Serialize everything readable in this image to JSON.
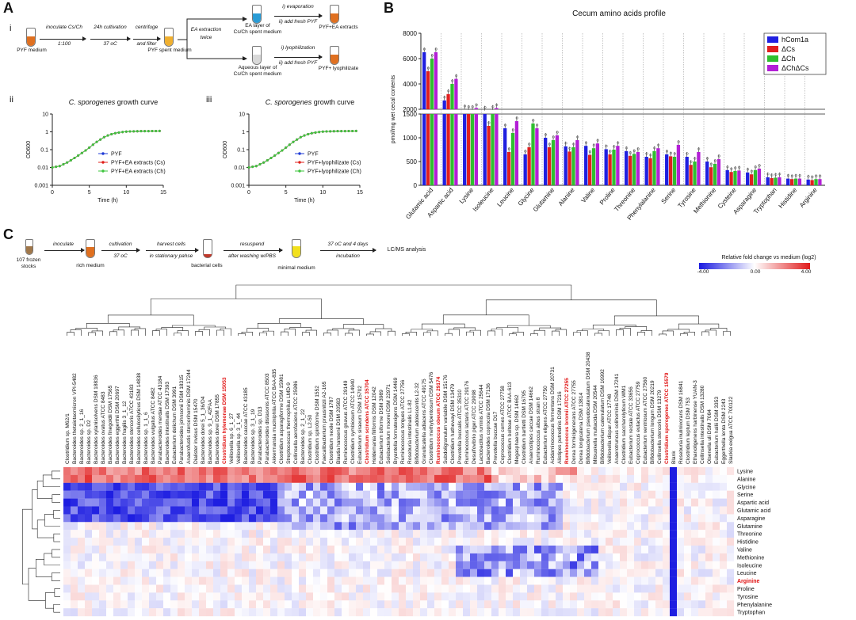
{
  "figure": {
    "panels": {
      "A": "A",
      "B": "B",
      "C": "C",
      "A_i": "i",
      "A_ii": "ii",
      "A_iii": "iii"
    },
    "flowA": {
      "start": "PYF medium",
      "step1_top": "inoculate Cs/Ch",
      "step1_bot": "1:100",
      "step2_top": "24h cultivation",
      "step2_bot": "37 oC",
      "step3_top": "centrifuge",
      "step3_bot": "and filter",
      "spent": "PYF spent medium",
      "step4_top": "EA extraction",
      "step4_bot": "twice",
      "ea_layer_1": "EA layer of",
      "ea_layer_2": "Cs/Ch spent medium",
      "aq_layer_1": "Aqueous layer of",
      "aq_layer_2": "Cs/Ch spent medium",
      "evap_1": "i) evaporation",
      "evap_2": "ii) add fresh PYF",
      "lyo_1": "i) lyophilization",
      "lyo_2": "ii) add fresh PYF",
      "out1": "PYF+EA extracts",
      "out2": "PYF+ lyophilizate"
    },
    "growth_ii": {
      "title_italic": "C. sporogenes",
      "title_rest": " growth curve",
      "ylabel": "OD600",
      "xlabel": "Time (h)",
      "yticks": [
        "10",
        "1",
        "0.1",
        "0.01",
        "0.001"
      ],
      "xticks": [
        "0",
        "5",
        "10",
        "15"
      ],
      "legend": [
        "PYF",
        "PYF+EA extracts (Cs)",
        "PYF+EA extracts (Ch)"
      ],
      "colors": [
        "#1f3bd6",
        "#e0201b",
        "#3ec43e"
      ]
    },
    "growth_iii": {
      "title_italic": "C. sporogenes",
      "title_rest": " growth curve",
      "ylabel": "OD600",
      "xlabel": "Time (h)",
      "yticks": [
        "10",
        "1",
        "0.1",
        "0.01",
        "0.001"
      ],
      "xticks": [
        "0",
        "5",
        "10",
        "15"
      ],
      "legend": [
        "PYF",
        "PYF+lyophilizate (Cs)",
        "PYF+lyophilizate (Ch)"
      ],
      "colors": [
        "#1f3bd6",
        "#e0201b",
        "#3ec43e"
      ]
    },
    "flowC": {
      "stocks_1": "107 frozen",
      "stocks_2": "stocks",
      "s1_top": "inoculate",
      "rich": "rich medium",
      "s2_top": "cultivation",
      "s2_bot": "37 oC",
      "s3_top": "harvest cells",
      "s3_bot": "in stationary pahse",
      "cells": "bacterial cells",
      "s4_top": "resuspend",
      "s4_bot": "after washing w/PBS",
      "minimal": "minimal medium",
      "s5_top": "37 oC and 4 days",
      "s5_bot": "incubation",
      "analysis": "LC/MS analysis"
    },
    "colorbar": {
      "title": "Relative fold change vs medium (log2)",
      "min": "-4.00",
      "mid": "0.00",
      "max": "4.00"
    }
  },
  "chart_data": [
    {
      "type": "line",
      "panel": "A-ii",
      "title": "C. sporogenes growth curve",
      "xlabel": "Time (h)",
      "ylabel": "OD600",
      "yscale": "log",
      "xlim": [
        0,
        15
      ],
      "ylim": [
        0.001,
        10
      ],
      "series": [
        {
          "name": "PYF",
          "color": "#1f3bd6",
          "x": [
            0,
            0.5,
            1,
            1.5,
            2,
            2.5,
            3,
            3.5,
            4,
            4.5,
            5,
            5.5,
            6,
            6.5,
            7,
            7.5,
            8,
            8.5,
            9,
            9.5,
            10,
            10.5,
            11,
            11.5,
            12,
            12.5,
            13,
            13.5,
            14,
            14.5
          ],
          "y": [
            0.01,
            0.011,
            0.012,
            0.015,
            0.019,
            0.025,
            0.034,
            0.047,
            0.065,
            0.09,
            0.13,
            0.19,
            0.27,
            0.37,
            0.5,
            0.62,
            0.74,
            0.84,
            0.92,
            0.98,
            1.02,
            1.05,
            1.07,
            1.08,
            1.09,
            1.1,
            1.1,
            1.11,
            1.11,
            1.12
          ]
        },
        {
          "name": "PYF+EA extracts (Cs)",
          "color": "#e0201b",
          "x": [
            0,
            0.5,
            1,
            1.5,
            2,
            2.5,
            3,
            3.5,
            4,
            4.5,
            5,
            5.5,
            6,
            6.5,
            7,
            7.5,
            8,
            8.5,
            9,
            9.5,
            10,
            10.5,
            11,
            11.5,
            12,
            12.5,
            13,
            13.5,
            14,
            14.5
          ],
          "y": [
            0.01,
            0.011,
            0.012,
            0.015,
            0.019,
            0.025,
            0.034,
            0.047,
            0.065,
            0.09,
            0.13,
            0.19,
            0.27,
            0.37,
            0.5,
            0.62,
            0.74,
            0.84,
            0.92,
            0.98,
            1.02,
            1.05,
            1.07,
            1.08,
            1.09,
            1.1,
            1.1,
            1.11,
            1.11,
            1.12
          ]
        },
        {
          "name": "PYF+EA extracts (Ch)",
          "color": "#3ec43e",
          "x": [
            0,
            0.5,
            1,
            1.5,
            2,
            2.5,
            3,
            3.5,
            4,
            4.5,
            5,
            5.5,
            6,
            6.5,
            7,
            7.5,
            8,
            8.5,
            9,
            9.5,
            10,
            10.5,
            11,
            11.5,
            12,
            12.5,
            13,
            13.5,
            14,
            14.5
          ],
          "y": [
            0.01,
            0.011,
            0.012,
            0.015,
            0.019,
            0.025,
            0.034,
            0.047,
            0.065,
            0.09,
            0.13,
            0.19,
            0.27,
            0.37,
            0.5,
            0.62,
            0.74,
            0.84,
            0.92,
            0.98,
            1.02,
            1.05,
            1.07,
            1.08,
            1.09,
            1.1,
            1.1,
            1.11,
            1.11,
            1.12
          ]
        }
      ]
    },
    {
      "type": "line",
      "panel": "A-iii",
      "title": "C. sporogenes growth curve",
      "xlabel": "Time (h)",
      "ylabel": "OD600",
      "yscale": "log",
      "xlim": [
        0,
        15
      ],
      "ylim": [
        0.001,
        10
      ],
      "series": [
        {
          "name": "PYF",
          "color": "#1f3bd6",
          "x": [
            0,
            0.5,
            1,
            1.5,
            2,
            2.5,
            3,
            3.5,
            4,
            4.5,
            5,
            5.5,
            6,
            6.5,
            7,
            7.5,
            8,
            8.5,
            9,
            9.5,
            10,
            10.5,
            11,
            11.5,
            12,
            12.5,
            13,
            13.5,
            14,
            14.5
          ],
          "y": [
            0.01,
            0.011,
            0.012,
            0.015,
            0.019,
            0.025,
            0.034,
            0.047,
            0.065,
            0.09,
            0.13,
            0.19,
            0.27,
            0.37,
            0.5,
            0.62,
            0.74,
            0.84,
            0.92,
            0.98,
            1.02,
            1.05,
            1.07,
            1.08,
            1.09,
            1.1,
            1.1,
            1.11,
            1.11,
            1.12
          ]
        },
        {
          "name": "PYF+lyophilizate (Cs)",
          "color": "#e0201b",
          "x": [
            0,
            0.5,
            1,
            1.5,
            2,
            2.5,
            3,
            3.5,
            4,
            4.5,
            5,
            5.5,
            6,
            6.5,
            7,
            7.5,
            8,
            8.5,
            9,
            9.5,
            10,
            10.5,
            11,
            11.5,
            12,
            12.5,
            13,
            13.5,
            14,
            14.5
          ],
          "y": [
            0.01,
            0.011,
            0.012,
            0.015,
            0.019,
            0.025,
            0.034,
            0.047,
            0.065,
            0.09,
            0.13,
            0.19,
            0.27,
            0.37,
            0.5,
            0.62,
            0.74,
            0.84,
            0.92,
            0.98,
            1.02,
            1.05,
            1.07,
            1.08,
            1.09,
            1.1,
            1.1,
            1.11,
            1.11,
            1.12
          ]
        },
        {
          "name": "PYF+lyophilizate (Ch)",
          "color": "#3ec43e",
          "x": [
            0,
            0.5,
            1,
            1.5,
            2,
            2.5,
            3,
            3.5,
            4,
            4.5,
            5,
            5.5,
            6,
            6.5,
            7,
            7.5,
            8,
            8.5,
            9,
            9.5,
            10,
            10.5,
            11,
            11.5,
            12,
            12.5,
            13,
            13.5,
            14,
            14.5
          ],
          "y": [
            0.01,
            0.011,
            0.012,
            0.015,
            0.019,
            0.025,
            0.034,
            0.047,
            0.065,
            0.09,
            0.13,
            0.19,
            0.27,
            0.37,
            0.5,
            0.62,
            0.74,
            0.84,
            0.92,
            0.98,
            1.02,
            1.05,
            1.07,
            1.08,
            1.09,
            1.1,
            1.1,
            1.11,
            1.11,
            1.12
          ]
        }
      ]
    },
    {
      "type": "bar",
      "panel": "B",
      "title": "Cecum amino acids profile",
      "ylabel": "pmol/mg wet cecal contents",
      "yaxis_break": [
        1500,
        2000
      ],
      "yticks_lower": [
        0,
        500,
        1000,
        1500
      ],
      "yticks_upper": [
        2000,
        4000,
        6000,
        8000
      ],
      "ylim": [
        0,
        8000
      ],
      "categories": [
        "Glutamic acid",
        "Aspartic acid",
        "Lysine",
        "Isoleucine",
        "Leucine",
        "Glycine",
        "Glutamine",
        "Alanine",
        "Valine",
        "Proline",
        "Threonine",
        "Phenylalanine",
        "Serine",
        "Tyrosine",
        "Methionine",
        "Cysteine",
        "Asparagine",
        "Tryptophan",
        "Histidine",
        "Arginine"
      ],
      "series": [
        {
          "name": "hCom1a",
          "color": "#1f1fe0",
          "values": [
            6500,
            2700,
            2000,
            1900,
            1200,
            650,
            1000,
            820,
            830,
            760,
            720,
            600,
            650,
            600,
            500,
            320,
            270,
            170,
            140,
            120
          ]
        },
        {
          "name": "ΔCs",
          "color": "#e01f1f",
          "values": [
            5000,
            3200,
            1950,
            1250,
            700,
            800,
            800,
            710,
            640,
            650,
            620,
            570,
            610,
            430,
            380,
            280,
            230,
            150,
            130,
            110
          ]
        },
        {
          "name": "ΔCh",
          "color": "#2fbf2f",
          "values": [
            6000,
            4000,
            1950,
            1950,
            1100,
            1300,
            950,
            800,
            780,
            750,
            660,
            720,
            600,
            500,
            450,
            300,
            320,
            160,
            140,
            130
          ]
        },
        {
          "name": "ΔChΔCs",
          "color": "#b31fd6",
          "values": [
            6500,
            4400,
            2100,
            2100,
            1350,
            1200,
            1050,
            950,
            880,
            830,
            700,
            780,
            850,
            700,
            550,
            310,
            350,
            170,
            140,
            130
          ]
        }
      ]
    },
    {
      "type": "heatmap",
      "panel": "C",
      "colorbar": {
        "title": "Relative fold change vs medium (log2)",
        "range": [
          -4,
          4
        ]
      },
      "rows": [
        "Lysine",
        "Alanine",
        "Glycine",
        "Serine",
        "Aspartic acid",
        "Glutamic acid",
        "Asparagine",
        "Glutamine",
        "Threonine",
        "Histidine",
        "Valine",
        "Methionine",
        "Isoleucine",
        "Leucine",
        "Arginine",
        "Proline",
        "Tyrosine",
        "Phenylalanine",
        "Tryptophan"
      ],
      "highlight_rows": [
        "Arginine"
      ],
      "columns": [
        "Clostridium sp. M62/1",
        "Bacteroides thetaiotaomicron VPI-5482",
        "Bacteroides sp. 2_1_16",
        "Bacteroides sp. D2",
        "Bacteroides xylanisolvens DSM 18836",
        "Bacteroides ovatus ATCC 8483",
        "Bacteroides finegoldii DSM 17565",
        "Bacteroides eggerthii DSM 20697",
        "Bacteroides fragilis 3_1_12",
        "Bacteroides stercoris ATCC 43183",
        "Bacteroides cellulosilyticus DSM 14838",
        "Bacteroides sp. 1_1_6",
        "Bacteroides vulgatus ATCC 8482",
        "Parabacteroides merdae ATCC 43184",
        "Bacteroides intestinalis DSM 17393",
        "Eubacterium dolichum DSM 3991",
        "Parabacteroides johnsonii DSM 18315",
        "Anaerofustis stercorihominis DSM 17244",
        "Dialister invisus DSM 15470",
        "Bacteroides dorei 5_1_36/D4",
        "Bacteroides sp. 9_1_42FAA",
        "Bacteroides dorei DSM 17855",
        "Clostridium hylemonae DSM 15053",
        "Veillonella sp. 6_1_27",
        "Veillonella sp. 3_1_44",
        "Bacteroides caccae ATCC 43185",
        "Bacteroides sp. 3_1_19",
        "Parabacteroides sp. D13",
        "Parabacteroides distasonis ATCC 8503",
        "Akkermansia muciniphila ATCC BAA-835",
        "Clostridium asparagiforme DSM 15981",
        "Streptococcus thermophilus LMD-9",
        "Collinsella aerofaciens ATCC 25986",
        "Bacteroides sp. 2_1_22",
        "Clostridium sp. L2-50",
        "Clostridium spiroforme DSM 1552",
        "Faecalibacterium prausnitzii A2-165",
        "Clostridium nexile DSM 1787",
        "Blautia hansenii DSM 20583",
        "Ruminococcus gnavus ATCC 29149",
        "Clostridium symbiosum ATCC 14940",
        "Eubacterium siraeum DSM 15702",
        "Clostridium scindens ATCC 35704",
        "Holdemania filiformis DSM 12042",
        "Eubacterium biforme DSM 3989",
        "Solobacterium moorei DSM 22971",
        "Bryantella formatexigens DSM 14469",
        "Ruminococcus torques ATCC 27756",
        "Roseburia intestinalis L1-82",
        "Bifidobacterium adolescentis L2-32",
        "Granulicatella adiacens ATCC 49175",
        "Clostridium methylpentosum DSM 5476",
        "Ruminococcus obeum ATCC 29174",
        "Subdoligranulum variabile DSM 15176",
        "Clostridium hathewayi DSM 13479",
        "Prevotella buccalis ATCC 35310",
        "Ruminococcus lactaris ATCC 29176",
        "Desulfovibrio piger ATCC 29098",
        "Lactobacillus ruminis ATCC 25644",
        "Bacteroides coprocola DSM 17136",
        "Prevotella buccae D17",
        "Coprococcus comes ATCC 27758",
        "Clostridium bolteae ATCC BAA-613",
        "Megasphaera sp. DSM 14662",
        "Clostridium bartletti DSM 16795",
        "Anaerostipes caccae DSM 14662",
        "Ruminococcus albus strain 8",
        "Eubacterium eligens ATCC 27750",
        "Acidaminococcus fermentans DSM 20731",
        "Alistipes putredinis DSM 17216",
        "Ruminococcus bromii ATCC 27255",
        "Dorea formicigenerans ATCC 27755",
        "Dorea longicatena DSM 13814",
        "Bifidobacterium pseudocatenulatum DSM 20438",
        "Mitsuokella multacida DSM 20544",
        "Bifidobacterium catenulatum DSM 16992",
        "Veillonella dispar ATCC 17748",
        "Anaerotruncus colihominis DSM 17241",
        "Clostridium saccharolyticum WM1",
        "Eubacterium rectale ATCC 33656",
        "Coprococcus eutactus ATCC 27759",
        "Eubacterium ventriosum ATCC 27560",
        "Bifidobacterium longum DSM 20219",
        "Collinsella stercoris DSM 13279",
        "Clostridium sporogenes ATCC 15579",
        "Blank",
        "Roseburia inulinivorans DSM 16841",
        "Clostridium leptum DSM 753",
        "Ethanoligenens harbinense YUAN-3",
        "Collinsella intestinalis DSM 13280",
        "Olsenella uli DSM 7084",
        "Eubacterium hallii DSM 3353",
        "Eggerthella lenta DSM 2243",
        "Slackia exigua ATCC 700122"
      ],
      "highlight_columns": [
        "Clostridium hylemonae DSM 15053",
        "Clostridium scindens ATCC 35704",
        "Ruminococcus obeum ATCC 29174",
        "Ruminococcus bromii ATCC 27255",
        "Clostridium sporogenes ATCC 15579"
      ]
    }
  ]
}
